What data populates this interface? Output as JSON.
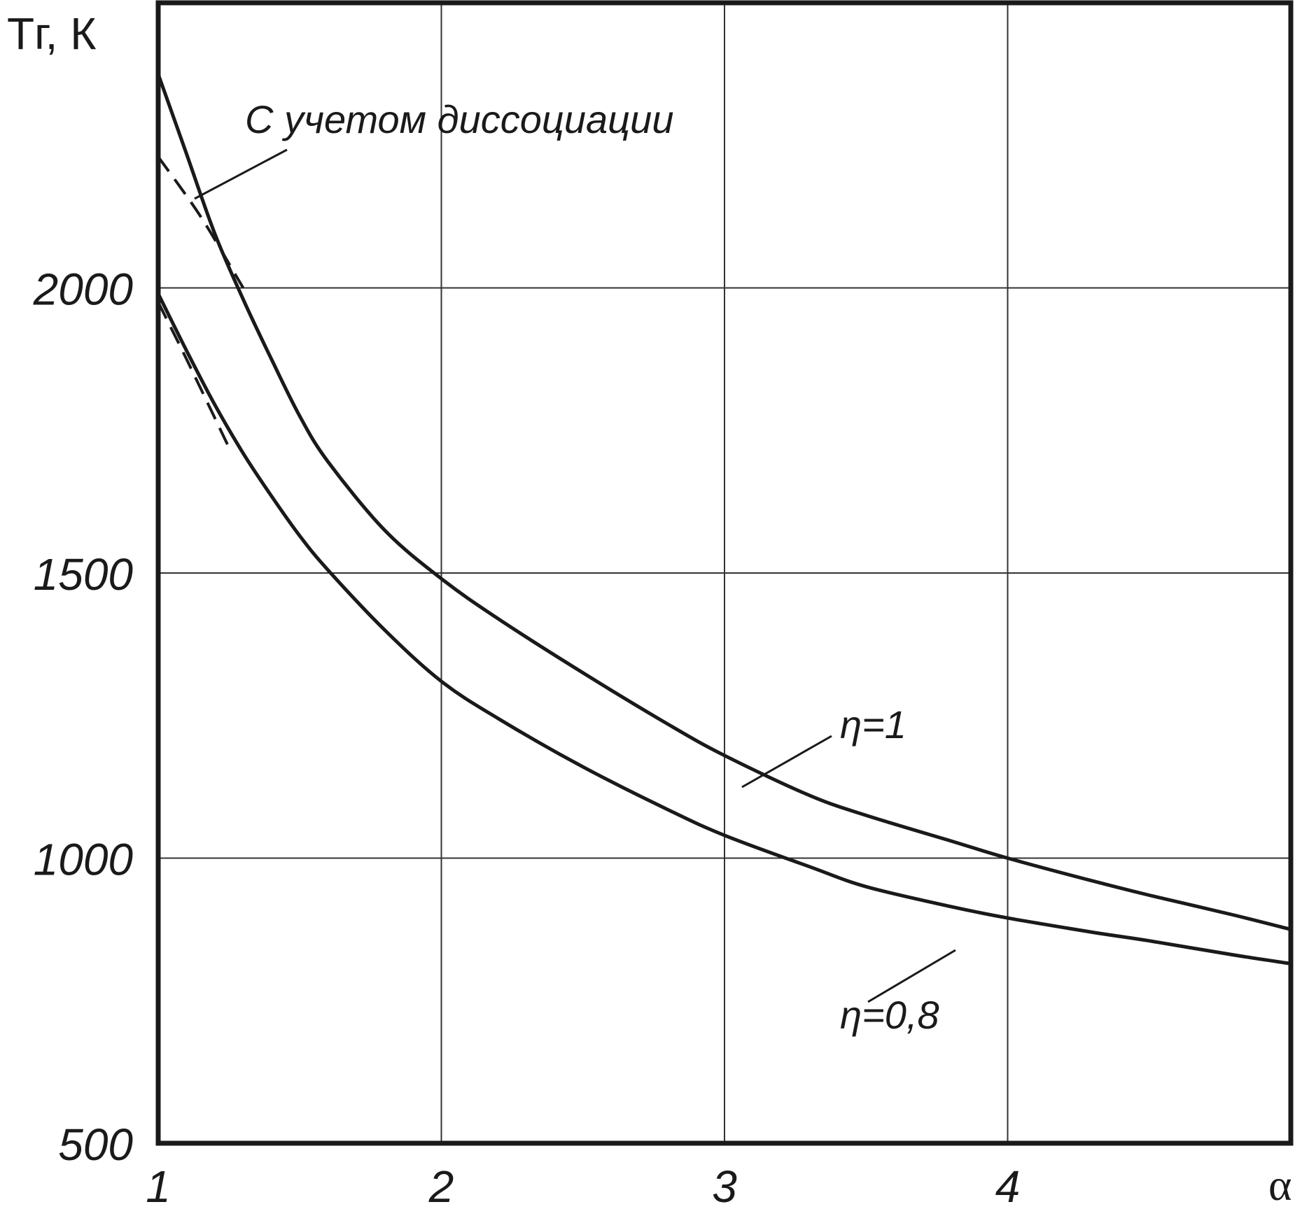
{
  "chart_data": {
    "type": "line",
    "title": "",
    "ylabel": "Tг, К",
    "xlabel": "α",
    "xlim": [
      1,
      5
    ],
    "ylim": [
      500,
      2500
    ],
    "x_ticks": [
      "1",
      "2",
      "3",
      "4"
    ],
    "y_ticks": [
      "500",
      "1000",
      "1500",
      "2000"
    ],
    "y_tick_values": [
      500,
      1000,
      1500,
      2000
    ],
    "x_tick_values": [
      1,
      2,
      3,
      4
    ],
    "grid": true,
    "series": [
      {
        "name": "η=1",
        "style": "solid",
        "x": [
          1.0,
          1.1,
          1.2,
          1.3,
          1.4,
          1.5,
          1.6,
          1.8,
          2.0,
          2.2,
          2.5,
          2.8,
          3.0,
          3.3,
          3.5,
          3.8,
          4.0,
          4.3,
          4.5,
          4.8,
          5.0
        ],
        "y": [
          2375,
          2235,
          2095,
          1980,
          1875,
          1775,
          1695,
          1575,
          1490,
          1420,
          1325,
          1235,
          1180,
          1110,
          1075,
          1030,
          1000,
          960,
          935,
          900,
          875
        ]
      },
      {
        "name": "С учетом диссоциации",
        "style": "dashed",
        "x": [
          1.0,
          1.15,
          1.3
        ],
        "y": [
          2230,
          2125,
          2000
        ]
      },
      {
        "name": "η=0,8",
        "style": "solid",
        "x": [
          1.0,
          1.1,
          1.2,
          1.3,
          1.4,
          1.5,
          1.6,
          1.8,
          2.0,
          2.2,
          2.5,
          2.8,
          3.0,
          3.3,
          3.5,
          3.8,
          4.0,
          4.3,
          4.5,
          4.8,
          5.0
        ],
        "y": [
          1990,
          1890,
          1795,
          1710,
          1635,
          1565,
          1505,
          1400,
          1310,
          1245,
          1160,
          1085,
          1040,
          985,
          950,
          915,
          895,
          870,
          855,
          830,
          815
        ]
      },
      {
        "name": "",
        "style": "dashed",
        "x": [
          1.0,
          1.1,
          1.25
        ],
        "y": [
          1975,
          1875,
          1720
        ]
      }
    ],
    "annotations": [
      {
        "text": "С учетом диссоциации"
      },
      {
        "text": "η=1"
      },
      {
        "text": "η=0,8"
      }
    ]
  }
}
